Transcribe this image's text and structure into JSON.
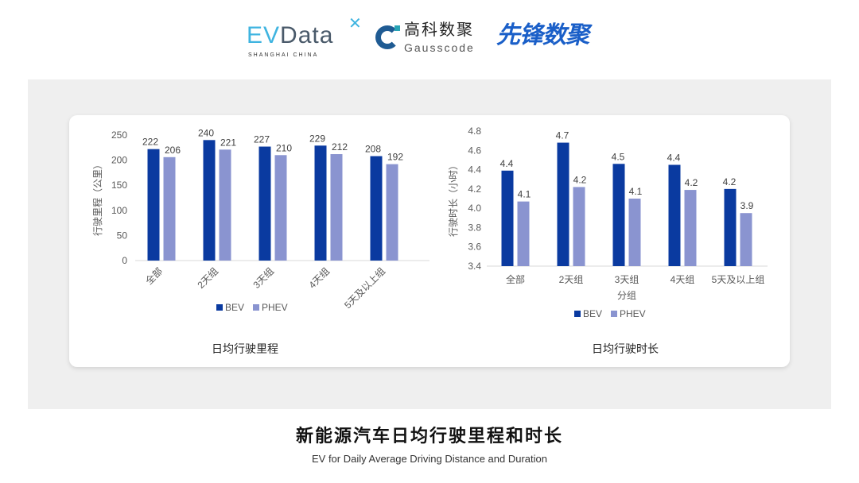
{
  "logos": {
    "evdata": {
      "text": "EVData",
      "sub": "SHANGHAI CHINA"
    },
    "gausscode": {
      "cn": "高科数聚",
      "en": "Gausscode"
    },
    "xianfeng": {
      "text": "先锋数聚"
    }
  },
  "colors": {
    "bev": "#0a3aa0",
    "phev": "#8a94d0",
    "panel": "#efefef"
  },
  "footer": {
    "title": "新能源汽车日均行驶里程和时长",
    "subtitle": "EV for Daily Average Driving Distance and Duration"
  },
  "chart_data": [
    {
      "type": "bar",
      "title": "日均行驶里程",
      "xlabel": "",
      "ylabel": "行驶里程（公里）",
      "ylim": [
        0,
        250
      ],
      "yticks": [
        0,
        50,
        100,
        150,
        200,
        250
      ],
      "categories": [
        "全部",
        "2天组",
        "3天组",
        "4天组",
        "5天及以上组"
      ],
      "series": [
        {
          "name": "BEV",
          "values": [
            222,
            240,
            227,
            229,
            208
          ]
        },
        {
          "name": "PHEV",
          "values": [
            206,
            221,
            210,
            212,
            192
          ]
        }
      ],
      "data_labels": true,
      "grid": false,
      "legend": "bottom"
    },
    {
      "type": "bar",
      "title": "日均行驶时长",
      "xlabel": "分组",
      "ylabel": "行驶时长（小时）",
      "ylim": [
        3.4,
        4.8
      ],
      "yticks": [
        "3.4",
        "3.6",
        "3.8",
        "4.0",
        "4.2",
        "4.4",
        "4.6",
        "4.8"
      ],
      "categories": [
        "全部",
        "2天组",
        "3天组",
        "4天组",
        "5天及以上组"
      ],
      "series": [
        {
          "name": "BEV",
          "values": [
            4.4,
            4.7,
            4.5,
            4.4,
            4.2
          ],
          "actual_heights": [
            4.39,
            4.68,
            4.46,
            4.45,
            4.2
          ]
        },
        {
          "name": "PHEV",
          "values": [
            4.1,
            4.2,
            4.1,
            4.2,
            3.9
          ],
          "actual_heights": [
            4.07,
            4.22,
            4.1,
            4.19,
            3.95
          ]
        }
      ],
      "data_labels": true,
      "grid": false,
      "legend": "bottom"
    }
  ]
}
